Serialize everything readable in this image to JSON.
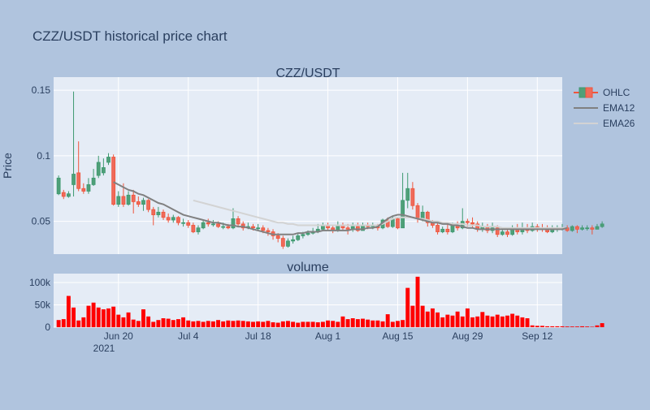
{
  "title": "CZZ/USDT historical price chart",
  "colors": {
    "page_bg": "#b0c4de",
    "plot_bg": "#e5ecf6",
    "grid": "#ffffff",
    "text": "#2a3f5f",
    "up": "#3d9970",
    "up_fill": "#4f9f78",
    "down": "#ef553b",
    "down_fill": "#ef6a5a",
    "ema12": "#808080",
    "ema26": "#d3d3d3",
    "volume_bar": "#ff0000"
  },
  "legend": {
    "position": "top-right",
    "items": [
      {
        "label": "OHLC",
        "kind": "candle"
      },
      {
        "label": "EMA12",
        "kind": "line",
        "color": "#808080"
      },
      {
        "label": "EMA26",
        "kind": "line",
        "color": "#d3d3d3"
      }
    ]
  },
  "chart_data": [
    {
      "type": "candlestick",
      "title": "CZZ/USDT",
      "ylabel": "Price",
      "ylim": [
        0.025,
        0.16
      ],
      "yticks": [
        0.05,
        0.1,
        0.15
      ],
      "ytick_labels": [
        "0.05",
        "0.1",
        "0.15"
      ],
      "xlim": [
        "2021-06-07",
        "2021-09-17"
      ],
      "xticks": [
        "2021-06-20",
        "2021-07-04",
        "2021-07-18",
        "2021-08-01",
        "2021-08-15",
        "2021-08-29",
        "2021-09-12"
      ],
      "xtick_labels": [
        "Jun 20",
        "Jul 4",
        "Jul 18",
        "Aug 1",
        "Aug 15",
        "Aug 29",
        "Sep 12"
      ],
      "xtick_year": "2021",
      "grid": true,
      "series": [
        {
          "name": "OHLC",
          "start_date": "2021-06-08",
          "open": [
            0.071,
            0.072,
            0.069,
            0.078,
            0.087,
            0.075,
            0.073,
            0.078,
            0.085,
            0.087,
            0.095,
            0.099,
            0.063,
            0.069,
            0.063,
            0.07,
            0.065,
            0.063,
            0.066,
            0.059,
            0.055,
            0.057,
            0.053,
            0.051,
            0.053,
            0.049,
            0.049,
            0.047,
            0.042,
            0.045,
            0.049,
            0.048,
            0.048,
            0.046,
            0.046,
            0.045,
            0.052,
            0.048,
            0.045,
            0.046,
            0.045,
            0.045,
            0.043,
            0.042,
            0.039,
            0.037,
            0.031,
            0.035,
            0.036,
            0.039,
            0.04,
            0.041,
            0.042,
            0.044,
            0.047,
            0.045,
            0.043,
            0.047,
            0.045,
            0.044,
            0.046,
            0.043,
            0.047,
            0.046,
            0.047,
            0.045,
            0.051,
            0.046,
            0.052,
            0.045,
            0.066,
            0.075,
            0.062,
            0.052,
            0.057,
            0.049,
            0.047,
            0.042,
            0.044,
            0.042,
            0.047,
            0.045,
            0.05,
            0.049,
            0.048,
            0.044,
            0.046,
            0.043,
            0.045,
            0.04,
            0.042,
            0.04,
            0.045,
            0.042,
            0.045,
            0.043,
            0.046,
            0.045,
            0.044,
            0.042,
            0.044,
            0.045,
            0.045,
            0.043,
            0.046,
            0.044,
            0.045,
            0.045,
            0.044,
            0.046
          ],
          "close": [
            0.083,
            0.069,
            0.071,
            0.086,
            0.075,
            0.073,
            0.078,
            0.083,
            0.095,
            0.091,
            0.099,
            0.063,
            0.069,
            0.063,
            0.07,
            0.065,
            0.063,
            0.066,
            0.059,
            0.055,
            0.057,
            0.053,
            0.051,
            0.053,
            0.049,
            0.049,
            0.047,
            0.042,
            0.045,
            0.049,
            0.048,
            0.048,
            0.046,
            0.046,
            0.045,
            0.052,
            0.048,
            0.045,
            0.046,
            0.045,
            0.045,
            0.043,
            0.042,
            0.039,
            0.037,
            0.031,
            0.035,
            0.036,
            0.039,
            0.04,
            0.041,
            0.042,
            0.044,
            0.047,
            0.045,
            0.043,
            0.047,
            0.045,
            0.044,
            0.046,
            0.043,
            0.047,
            0.046,
            0.047,
            0.045,
            0.051,
            0.046,
            0.052,
            0.045,
            0.066,
            0.075,
            0.062,
            0.052,
            0.057,
            0.049,
            0.047,
            0.042,
            0.044,
            0.042,
            0.047,
            0.045,
            0.05,
            0.049,
            0.048,
            0.044,
            0.046,
            0.043,
            0.045,
            0.04,
            0.042,
            0.04,
            0.045,
            0.042,
            0.045,
            0.043,
            0.046,
            0.045,
            0.044,
            0.042,
            0.044,
            0.045,
            0.045,
            0.043,
            0.046,
            0.044,
            0.045,
            0.045,
            0.044,
            0.046,
            0.048
          ],
          "high": [
            0.085,
            0.074,
            0.073,
            0.149,
            0.111,
            0.079,
            0.083,
            0.09,
            0.1,
            0.098,
            0.102,
            0.101,
            0.073,
            0.079,
            0.073,
            0.074,
            0.069,
            0.068,
            0.067,
            0.061,
            0.061,
            0.059,
            0.056,
            0.055,
            0.054,
            0.052,
            0.051,
            0.049,
            0.047,
            0.051,
            0.052,
            0.051,
            0.05,
            0.049,
            0.048,
            0.06,
            0.054,
            0.05,
            0.049,
            0.048,
            0.048,
            0.047,
            0.045,
            0.044,
            0.041,
            0.039,
            0.037,
            0.039,
            0.041,
            0.042,
            0.043,
            0.045,
            0.048,
            0.049,
            0.049,
            0.047,
            0.05,
            0.049,
            0.048,
            0.049,
            0.049,
            0.049,
            0.049,
            0.049,
            0.048,
            0.052,
            0.053,
            0.054,
            0.053,
            0.087,
            0.087,
            0.08,
            0.064,
            0.062,
            0.058,
            0.051,
            0.049,
            0.046,
            0.048,
            0.049,
            0.05,
            0.06,
            0.052,
            0.053,
            0.05,
            0.049,
            0.048,
            0.049,
            0.047,
            0.045,
            0.044,
            0.047,
            0.048,
            0.049,
            0.048,
            0.049,
            0.048,
            0.048,
            0.047,
            0.047,
            0.047,
            0.048,
            0.047,
            0.047,
            0.047,
            0.047,
            0.047,
            0.047,
            0.048,
            0.05
          ],
          "low": [
            0.07,
            0.067,
            0.068,
            0.069,
            0.073,
            0.071,
            0.071,
            0.077,
            0.083,
            0.085,
            0.093,
            0.062,
            0.061,
            0.061,
            0.062,
            0.056,
            0.061,
            0.058,
            0.057,
            0.047,
            0.053,
            0.051,
            0.049,
            0.049,
            0.047,
            0.046,
            0.045,
            0.041,
            0.04,
            0.044,
            0.046,
            0.046,
            0.045,
            0.044,
            0.044,
            0.044,
            0.046,
            0.043,
            0.044,
            0.043,
            0.043,
            0.041,
            0.039,
            0.036,
            0.034,
            0.029,
            0.03,
            0.033,
            0.035,
            0.037,
            0.039,
            0.04,
            0.041,
            0.043,
            0.043,
            0.041,
            0.042,
            0.043,
            0.04,
            0.042,
            0.042,
            0.043,
            0.044,
            0.044,
            0.043,
            0.044,
            0.045,
            0.045,
            0.044,
            0.045,
            0.06,
            0.059,
            0.049,
            0.05,
            0.046,
            0.045,
            0.04,
            0.041,
            0.04,
            0.041,
            0.043,
            0.044,
            0.046,
            0.045,
            0.042,
            0.042,
            0.041,
            0.041,
            0.038,
            0.039,
            0.038,
            0.039,
            0.04,
            0.04,
            0.041,
            0.042,
            0.042,
            0.042,
            0.041,
            0.041,
            0.042,
            0.043,
            0.042,
            0.042,
            0.041,
            0.043,
            0.043,
            0.04,
            0.044,
            0.045
          ]
        },
        {
          "name": "EMA12",
          "start_date": "2021-06-19",
          "values": [
            0.08,
            0.078,
            0.076,
            0.074,
            0.073,
            0.071,
            0.07,
            0.068,
            0.066,
            0.064,
            0.063,
            0.061,
            0.059,
            0.057,
            0.055,
            0.054,
            0.053,
            0.052,
            0.051,
            0.05,
            0.049,
            0.049,
            0.048,
            0.047,
            0.047,
            0.046,
            0.046,
            0.045,
            0.044,
            0.043,
            0.042,
            0.041,
            0.04,
            0.04,
            0.04,
            0.04,
            0.04,
            0.041,
            0.041,
            0.042,
            0.042,
            0.042,
            0.043,
            0.043,
            0.043,
            0.043,
            0.043,
            0.043,
            0.044,
            0.044,
            0.044,
            0.045,
            0.045,
            0.046,
            0.049,
            0.052,
            0.054,
            0.055,
            0.055,
            0.054,
            0.053,
            0.052,
            0.051,
            0.05,
            0.049,
            0.049,
            0.048,
            0.048,
            0.047,
            0.047,
            0.046,
            0.045,
            0.045,
            0.044,
            0.044,
            0.044,
            0.044,
            0.044,
            0.044,
            0.044,
            0.044,
            0.044,
            0.044,
            0.044,
            0.044,
            0.044,
            0.044,
            0.044,
            0.044,
            0.044,
            0.044,
            0.045
          ]
        },
        {
          "name": "EMA26",
          "start_date": "2021-07-05",
          "values": [
            0.066,
            0.065,
            0.064,
            0.063,
            0.062,
            0.061,
            0.06,
            0.059,
            0.058,
            0.057,
            0.056,
            0.055,
            0.054,
            0.053,
            0.052,
            0.051,
            0.05,
            0.049,
            0.049,
            0.048,
            0.048,
            0.047,
            0.047,
            0.047,
            0.047,
            0.047,
            0.047,
            0.047,
            0.047,
            0.047,
            0.047,
            0.047,
            0.047,
            0.047,
            0.047,
            0.047,
            0.047,
            0.047,
            0.048,
            0.05,
            0.052,
            0.053,
            0.053,
            0.053,
            0.053,
            0.052,
            0.052,
            0.051,
            0.05,
            0.05,
            0.049,
            0.049,
            0.048,
            0.048,
            0.048,
            0.047,
            0.047,
            0.047,
            0.046,
            0.046,
            0.046,
            0.046,
            0.045,
            0.045,
            0.045,
            0.045,
            0.045,
            0.045,
            0.045,
            0.045,
            0.045,
            0.045,
            0.045,
            0.045,
            0.045,
            0.045
          ]
        }
      ]
    },
    {
      "type": "bar",
      "title": "volume",
      "ylim": [
        0,
        120000
      ],
      "yticks": [
        0,
        50000,
        100000
      ],
      "ytick_labels": [
        "0",
        "50k",
        "100k"
      ],
      "grid": true,
      "start_date": "2021-06-08",
      "values": [
        16000,
        18000,
        70000,
        44000,
        15000,
        22000,
        48000,
        55000,
        44000,
        40000,
        42000,
        46000,
        28000,
        22000,
        33000,
        17000,
        14000,
        40000,
        24000,
        12000,
        16000,
        20000,
        19000,
        16000,
        18000,
        22000,
        15000,
        13000,
        14000,
        12000,
        14000,
        13000,
        16000,
        13000,
        15000,
        14000,
        15000,
        14000,
        13000,
        12000,
        13000,
        12000,
        14000,
        11000,
        10000,
        13000,
        14000,
        12000,
        10000,
        12000,
        12000,
        12000,
        11000,
        12000,
        15000,
        14000,
        12000,
        24000,
        18000,
        20000,
        18000,
        19000,
        17000,
        15000,
        15000,
        13000,
        29000,
        12000,
        14000,
        16000,
        88000,
        48000,
        113000,
        48000,
        35000,
        42000,
        33000,
        22000,
        28000,
        26000,
        35000,
        24000,
        42000,
        22000,
        24000,
        34000,
        26000,
        24000,
        28000,
        24000,
        26000,
        30000,
        26000,
        22000,
        20000,
        4000,
        3000,
        3000,
        2000,
        2000,
        2000,
        2000,
        1500,
        1500,
        1500,
        2000,
        1500,
        1000,
        4000,
        9000
      ]
    }
  ]
}
